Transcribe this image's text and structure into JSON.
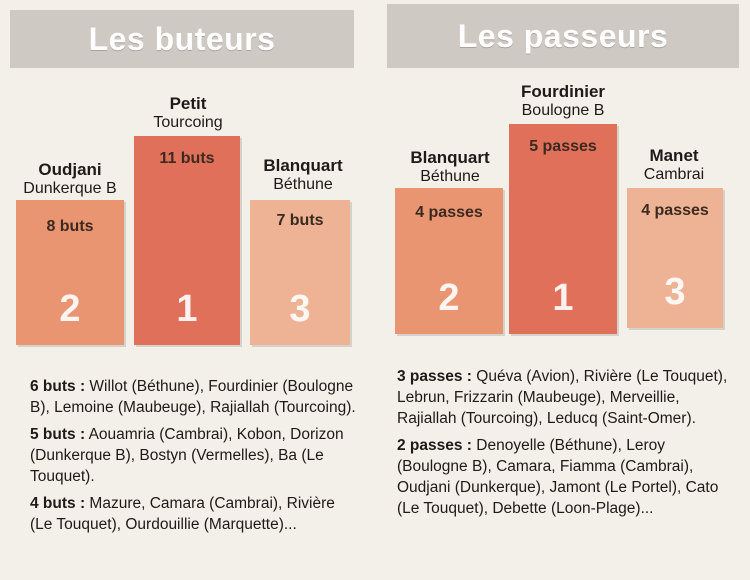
{
  "buteurs": {
    "title": "Les buteurs",
    "podium": [
      {
        "rank": "2",
        "name": "Oudjani",
        "club": "Dunkerque B",
        "value": "8 buts"
      },
      {
        "rank": "1",
        "name": "Petit",
        "club": "Tourcoing",
        "value": "11 buts"
      },
      {
        "rank": "3",
        "name": "Blanquart",
        "club": "Béthune",
        "value": "7 buts"
      }
    ],
    "lists": [
      {
        "count": "6 buts :",
        "names": " Willot (Béthune), Fourdinier (Boulogne B), Lemoine (Maubeuge), Rajiallah (Tourcoing)."
      },
      {
        "count": "5 buts :",
        "names": " Aouamria (Cambrai), Kobon, Dorizon (Dunkerque B), Bostyn (Vermelles), Ba (Le Touquet)."
      },
      {
        "count": "4 buts :",
        "names": " Mazure, Camara (Cambrai), Rivière (Le Touquet), Ourdouillie (Marquette)..."
      }
    ]
  },
  "passeurs": {
    "title": "Les passeurs",
    "podium": [
      {
        "rank": "2",
        "name": "Blanquart",
        "club": "Béthune",
        "value": "4 passes"
      },
      {
        "rank": "1",
        "name": "Fourdinier",
        "club": "Boulogne B",
        "value": "5 passes"
      },
      {
        "rank": "3",
        "name": "Manet",
        "club": "Cambrai",
        "value": "4 passes"
      }
    ],
    "lists": [
      {
        "count": "3 passes :",
        "names": " Quéva (Avion), Rivière (Le Touquet), Lebrun, Frizzarin (Maubeuge), Merveillie, Rajiallah (Tourcoing), Leducq (Saint-Omer)."
      },
      {
        "count": "2 passes :",
        "names": " Denoyelle (Béthune), Leroy (Boulogne B), Camara, Fiamma (Cambrai), Oudjani (Dunkerque), Jamont (Le Portel), Cato (Le Touquet), Debette (Loon-Plage)..."
      }
    ]
  },
  "colors": {
    "bar_first": "#e0705a",
    "bar_second": "#e99572",
    "bar_third": "#eeb394"
  }
}
